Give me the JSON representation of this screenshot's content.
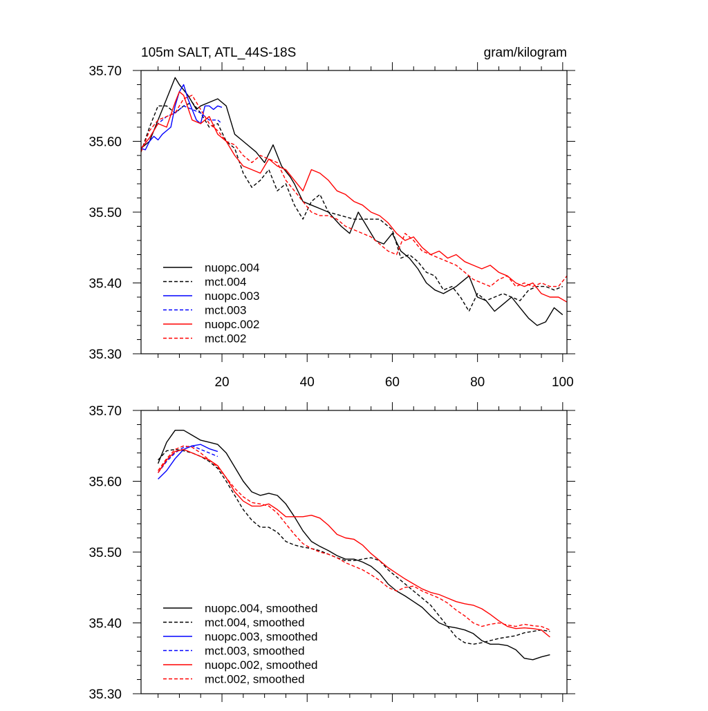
{
  "chart_data": [
    {
      "type": "line",
      "title": "105m SALT, ATL_44S-18S",
      "units": "gram/kilogram",
      "xlim": [
        1,
        101
      ],
      "ylim": [
        35.3,
        35.7
      ],
      "xticks": [
        20,
        40,
        60,
        80,
        100
      ],
      "yticks": [
        35.3,
        35.4,
        35.5,
        35.6,
        35.7
      ],
      "ytick_labels": [
        "35.30",
        "35.40",
        "35.50",
        "35.60",
        "35.70"
      ],
      "xtick_labels": [
        "20",
        "40",
        "60",
        "80",
        "100"
      ],
      "legend": "bottom-left",
      "series": [
        {
          "name": "nuopc.004",
          "color": "#000000",
          "dash": false,
          "x": [
            1,
            3,
            5,
            7,
            9,
            10,
            12,
            14,
            15,
            17,
            19,
            21,
            23,
            25,
            28,
            30,
            32,
            34,
            36,
            37,
            39,
            41,
            43,
            45,
            48,
            50,
            52,
            54,
            56,
            58,
            60,
            62,
            64,
            66,
            68,
            70,
            72,
            75,
            78,
            80,
            82,
            84,
            86,
            88,
            90,
            92,
            94,
            96,
            98,
            100
          ],
          "values": [
            35.59,
            35.6,
            35.63,
            35.66,
            35.69,
            35.68,
            35.665,
            35.645,
            35.65,
            35.655,
            35.66,
            35.65,
            35.61,
            35.6,
            35.585,
            35.57,
            35.595,
            35.565,
            35.55,
            35.54,
            35.515,
            35.51,
            35.505,
            35.5,
            35.48,
            35.47,
            35.5,
            35.48,
            35.46,
            35.455,
            35.47,
            35.445,
            35.435,
            35.42,
            35.4,
            35.39,
            35.385,
            35.395,
            35.41,
            35.38,
            35.375,
            35.36,
            35.37,
            35.38,
            35.365,
            35.35,
            35.34,
            35.345,
            35.365,
            35.355
          ]
        },
        {
          "name": "mct.004",
          "color": "#000000",
          "dash": true,
          "x": [
            1,
            3,
            5,
            7,
            9,
            11,
            13,
            15,
            17,
            19,
            21,
            23,
            25,
            27,
            29,
            31,
            33,
            35,
            37,
            39,
            41,
            43,
            45,
            48,
            51,
            54,
            57,
            60,
            62,
            64,
            66,
            68,
            70,
            72,
            74,
            76,
            78,
            80,
            82,
            84,
            86,
            88,
            90,
            92,
            94,
            96,
            98,
            100
          ],
          "values": [
            35.585,
            35.62,
            35.65,
            35.65,
            35.64,
            35.65,
            35.655,
            35.64,
            35.62,
            35.625,
            35.6,
            35.59,
            35.555,
            35.535,
            35.545,
            35.56,
            35.53,
            35.54,
            35.51,
            35.49,
            35.515,
            35.525,
            35.5,
            35.495,
            35.49,
            35.49,
            35.49,
            35.475,
            35.435,
            35.44,
            35.43,
            35.415,
            35.41,
            35.39,
            35.395,
            35.38,
            35.36,
            35.385,
            35.375,
            35.38,
            35.385,
            35.38,
            35.375,
            35.39,
            35.395,
            35.395,
            35.39,
            35.395
          ]
        },
        {
          "name": "nuopc.003",
          "color": "#0000ff",
          "dash": false,
          "x": [
            1,
            2,
            3,
            4,
            5,
            6,
            7,
            8,
            9,
            10,
            11,
            12,
            13,
            14,
            15,
            16,
            17,
            18,
            19,
            20
          ],
          "values": [
            35.59,
            35.588,
            35.6,
            35.607,
            35.602,
            35.61,
            35.615,
            35.62,
            35.65,
            35.67,
            35.68,
            35.66,
            35.645,
            35.63,
            35.625,
            35.65,
            35.65,
            35.645,
            35.65,
            35.648
          ]
        },
        {
          "name": "mct.003",
          "color": "#0000ff",
          "dash": true,
          "x": [
            1,
            3,
            5,
            7,
            9,
            11,
            13,
            15,
            17,
            19,
            20
          ],
          "values": [
            35.59,
            35.605,
            35.625,
            35.635,
            35.64,
            35.65,
            35.645,
            35.64,
            35.63,
            35.63,
            35.625
          ]
        },
        {
          "name": "nuopc.002",
          "color": "#ff0000",
          "dash": false,
          "x": [
            1,
            3,
            5,
            7,
            9,
            10,
            11,
            13,
            15,
            17,
            19,
            21,
            23,
            25,
            27,
            29,
            31,
            33,
            35,
            37,
            39,
            41,
            43,
            45,
            47,
            49,
            51,
            53,
            55,
            57,
            59,
            61,
            63,
            65,
            67,
            69,
            71,
            73,
            75,
            77,
            79,
            81,
            83,
            85,
            87,
            89,
            91,
            93,
            95,
            97,
            99,
            101
          ],
          "values": [
            35.59,
            35.605,
            35.625,
            35.62,
            35.655,
            35.67,
            35.665,
            35.63,
            35.625,
            35.635,
            35.61,
            35.6,
            35.58,
            35.565,
            35.56,
            35.555,
            35.575,
            35.565,
            35.56,
            35.545,
            35.53,
            35.56,
            35.555,
            35.545,
            35.53,
            35.525,
            35.515,
            35.51,
            35.5,
            35.495,
            35.485,
            35.47,
            35.46,
            35.465,
            35.45,
            35.44,
            35.445,
            35.435,
            35.44,
            35.43,
            35.425,
            35.42,
            35.425,
            35.415,
            35.41,
            35.4,
            35.395,
            35.4,
            35.385,
            35.38,
            35.38,
            35.373
          ]
        },
        {
          "name": "mct.002",
          "color": "#ff0000",
          "dash": true,
          "x": [
            1,
            3,
            5,
            7,
            9,
            11,
            13,
            15,
            17,
            19,
            21,
            23,
            25,
            27,
            29,
            31,
            33,
            35,
            37,
            39,
            41,
            43,
            45,
            47,
            49,
            51,
            53,
            55,
            57,
            59,
            61,
            63,
            65,
            67,
            69,
            71,
            73,
            75,
            77,
            79,
            81,
            83,
            85,
            87,
            89,
            91,
            93,
            95,
            97,
            99,
            101
          ],
          "values": [
            35.585,
            35.615,
            35.63,
            35.635,
            35.64,
            35.66,
            35.665,
            35.645,
            35.625,
            35.615,
            35.6,
            35.595,
            35.58,
            35.57,
            35.58,
            35.575,
            35.57,
            35.545,
            35.53,
            35.515,
            35.5,
            35.495,
            35.495,
            35.49,
            35.48,
            35.475,
            35.47,
            35.465,
            35.455,
            35.445,
            35.44,
            35.47,
            35.46,
            35.445,
            35.44,
            35.435,
            35.43,
            35.425,
            35.415,
            35.405,
            35.4,
            35.395,
            35.405,
            35.41,
            35.395,
            35.4,
            35.395,
            35.4,
            35.395,
            35.395,
            35.41
          ]
        }
      ]
    },
    {
      "type": "line",
      "title": "",
      "xlim": [
        1,
        101
      ],
      "ylim": [
        35.3,
        35.7
      ],
      "xticks": [
        20,
        40,
        60,
        80,
        100
      ],
      "yticks": [
        35.3,
        35.4,
        35.5,
        35.6,
        35.7
      ],
      "ytick_labels": [
        "35.30",
        "35.40",
        "35.50",
        "35.60",
        "35.70"
      ],
      "legend": "bottom-left",
      "series": [
        {
          "name": "nuopc.004, smoothed",
          "color": "#000000",
          "dash": false,
          "x": [
            5,
            7,
            9,
            11,
            13,
            15,
            17,
            19,
            21,
            23,
            25,
            27,
            29,
            31,
            33,
            35,
            37,
            39,
            41,
            43,
            45,
            47,
            49,
            51,
            53,
            55,
            57,
            59,
            61,
            63,
            65,
            67,
            69,
            71,
            73,
            75,
            77,
            79,
            81,
            83,
            85,
            87,
            89,
            91,
            93,
            95,
            97
          ],
          "values": [
            35.625,
            35.655,
            35.672,
            35.672,
            35.665,
            35.658,
            35.655,
            35.652,
            35.64,
            35.62,
            35.6,
            35.585,
            35.58,
            35.583,
            35.58,
            35.568,
            35.55,
            35.53,
            35.515,
            35.508,
            35.502,
            35.495,
            35.49,
            35.49,
            35.486,
            35.48,
            35.47,
            35.455,
            35.445,
            35.438,
            35.43,
            35.422,
            35.41,
            35.4,
            35.395,
            35.393,
            35.39,
            35.385,
            35.375,
            35.37,
            35.37,
            35.368,
            35.362,
            35.35,
            35.348,
            35.352,
            35.355
          ]
        },
        {
          "name": "mct.004, smoothed",
          "color": "#000000",
          "dash": true,
          "x": [
            5,
            7,
            9,
            11,
            13,
            15,
            17,
            19,
            21,
            23,
            25,
            27,
            29,
            31,
            33,
            35,
            37,
            39,
            41,
            43,
            45,
            47,
            49,
            51,
            53,
            55,
            57,
            59,
            61,
            63,
            65,
            67,
            69,
            71,
            73,
            75,
            77,
            79,
            81,
            83,
            85,
            87,
            89,
            91,
            93,
            95,
            97
          ],
          "values": [
            35.63,
            35.643,
            35.645,
            35.643,
            35.64,
            35.635,
            35.628,
            35.618,
            35.6,
            35.58,
            35.56,
            35.545,
            35.535,
            35.535,
            35.528,
            35.515,
            35.51,
            35.507,
            35.505,
            35.502,
            35.497,
            35.492,
            35.488,
            35.488,
            35.49,
            35.492,
            35.488,
            35.475,
            35.465,
            35.455,
            35.445,
            35.435,
            35.425,
            35.41,
            35.395,
            35.38,
            35.372,
            35.37,
            35.372,
            35.375,
            35.378,
            35.38,
            35.382,
            35.386,
            35.388,
            35.39,
            35.388
          ]
        },
        {
          "name": "nuopc.003, smoothed",
          "color": "#0000ff",
          "dash": false,
          "x": [
            5,
            7,
            9,
            11,
            13,
            15,
            17,
            19
          ],
          "values": [
            35.603,
            35.615,
            35.632,
            35.645,
            35.65,
            35.652,
            35.646,
            35.642
          ]
        },
        {
          "name": "mct.003, smoothed",
          "color": "#0000ff",
          "dash": true,
          "x": [
            5,
            7,
            9,
            11,
            13,
            15,
            17,
            19
          ],
          "values": [
            35.612,
            35.628,
            35.64,
            35.648,
            35.65,
            35.645,
            35.64,
            35.635
          ]
        },
        {
          "name": "nuopc.002, smoothed",
          "color": "#ff0000",
          "dash": false,
          "x": [
            5,
            7,
            9,
            11,
            13,
            15,
            17,
            19,
            21,
            23,
            25,
            27,
            29,
            31,
            33,
            35,
            37,
            39,
            41,
            43,
            45,
            47,
            49,
            51,
            53,
            55,
            57,
            59,
            61,
            63,
            65,
            67,
            69,
            71,
            73,
            75,
            77,
            79,
            81,
            83,
            85,
            87,
            89,
            91,
            93,
            95,
            97
          ],
          "values": [
            35.612,
            35.63,
            35.642,
            35.645,
            35.64,
            35.635,
            35.63,
            35.622,
            35.605,
            35.585,
            35.572,
            35.565,
            35.565,
            35.568,
            35.56,
            35.55,
            35.55,
            35.55,
            35.552,
            35.548,
            35.538,
            35.525,
            35.52,
            35.518,
            35.51,
            35.498,
            35.488,
            35.478,
            35.47,
            35.462,
            35.455,
            35.448,
            35.443,
            35.44,
            35.435,
            35.43,
            35.427,
            35.425,
            35.42,
            35.412,
            35.403,
            35.395,
            35.392,
            35.393,
            35.392,
            35.39,
            35.38
          ]
        },
        {
          "name": "mct.002, smoothed",
          "color": "#ff0000",
          "dash": true,
          "x": [
            5,
            7,
            9,
            11,
            13,
            15,
            17,
            19,
            21,
            23,
            25,
            27,
            29,
            31,
            33,
            35,
            37,
            39,
            41,
            43,
            45,
            47,
            49,
            51,
            53,
            55,
            57,
            59,
            61,
            63,
            65,
            67,
            69,
            71,
            73,
            75,
            77,
            79,
            81,
            83,
            85,
            87,
            89,
            91,
            93,
            95,
            97
          ],
          "values": [
            35.615,
            35.632,
            35.645,
            35.65,
            35.648,
            35.64,
            35.63,
            35.62,
            35.605,
            35.59,
            35.578,
            35.57,
            35.568,
            35.565,
            35.555,
            35.54,
            35.525,
            35.512,
            35.505,
            35.5,
            35.497,
            35.492,
            35.485,
            35.48,
            35.475,
            35.468,
            35.46,
            35.45,
            35.445,
            35.45,
            35.452,
            35.445,
            35.44,
            35.435,
            35.428,
            35.418,
            35.41,
            35.4,
            35.395,
            35.398,
            35.4,
            35.397,
            35.395,
            35.398,
            35.396,
            35.395,
            35.39
          ]
        }
      ]
    }
  ]
}
